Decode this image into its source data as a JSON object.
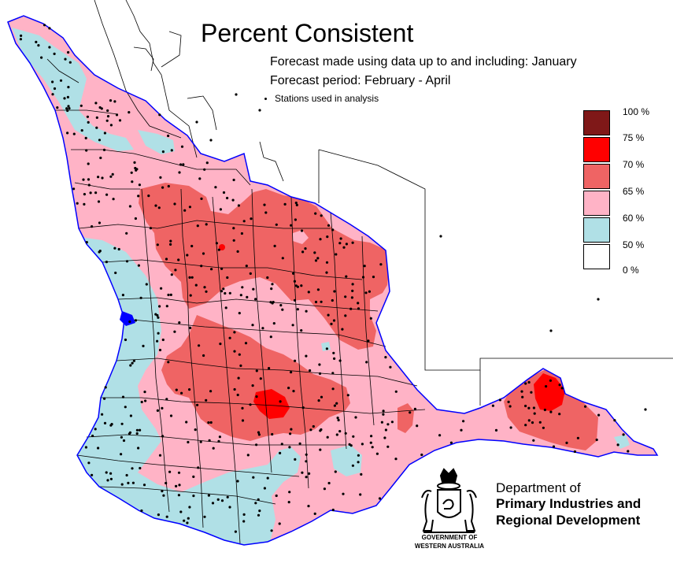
{
  "title": "Percent Consistent",
  "subtitle_1": "Forecast made using data up to and including: January",
  "subtitle_2": "Forecast period: February - April",
  "stations_label": "Stations used in analysis",
  "legend": [
    {
      "label": "100 %",
      "color": "#7f1818"
    },
    {
      "label": "75 %",
      "color": "#ff0000"
    },
    {
      "label": "70 %",
      "color": "#ef6464"
    },
    {
      "label": "65 %",
      "color": "#ffb3c6"
    },
    {
      "label": "60 %",
      "color": "#b0e0e6"
    },
    {
      "label": "50 %",
      "color": "#ffffff"
    },
    {
      "label": "0 %",
      "color": null
    }
  ],
  "colors": {
    "coast": "#0000ff",
    "boundary": "#000000",
    "band_50_60": "#b0e0e6",
    "band_60_65": "#ffb3c6",
    "band_65_70": "#ef6464",
    "band_70_75": "#ff0000"
  },
  "logo": {
    "government_line_1": "GOVERNMENT OF",
    "government_line_2": "WESTERN AUSTRALIA",
    "department_line_1": "Department of",
    "department_line_2": "Primary Industries and",
    "department_line_3": "Regional Development"
  }
}
